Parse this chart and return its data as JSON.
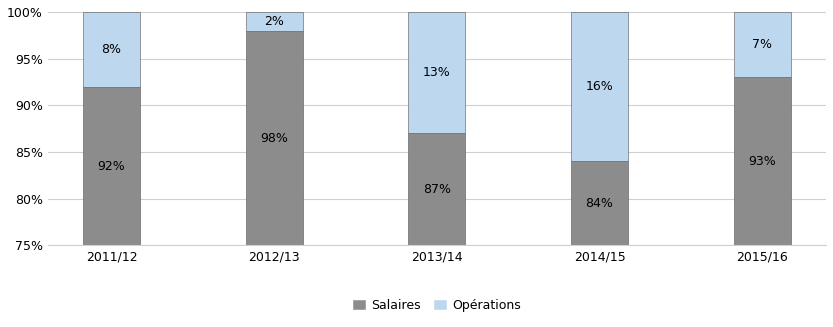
{
  "categories": [
    "2011/12",
    "2012/13",
    "2013/14",
    "2014/15",
    "2015/16"
  ],
  "salaires": [
    92,
    98,
    87,
    84,
    93
  ],
  "operations": [
    8,
    2,
    13,
    16,
    7
  ],
  "salaires_color": "#8c8c8c",
  "operations_color": "#bdd7ee",
  "ylim": [
    75,
    100
  ],
  "yticks": [
    75,
    80,
    85,
    90,
    95,
    100
  ],
  "ytick_labels": [
    "75%",
    "80%",
    "85%",
    "90%",
    "95%",
    "100%"
  ],
  "legend_salaires": "Salaires",
  "legend_operations": "Opérations",
  "bar_width": 0.35,
  "figsize": [
    8.33,
    3.27
  ],
  "dpi": 100
}
